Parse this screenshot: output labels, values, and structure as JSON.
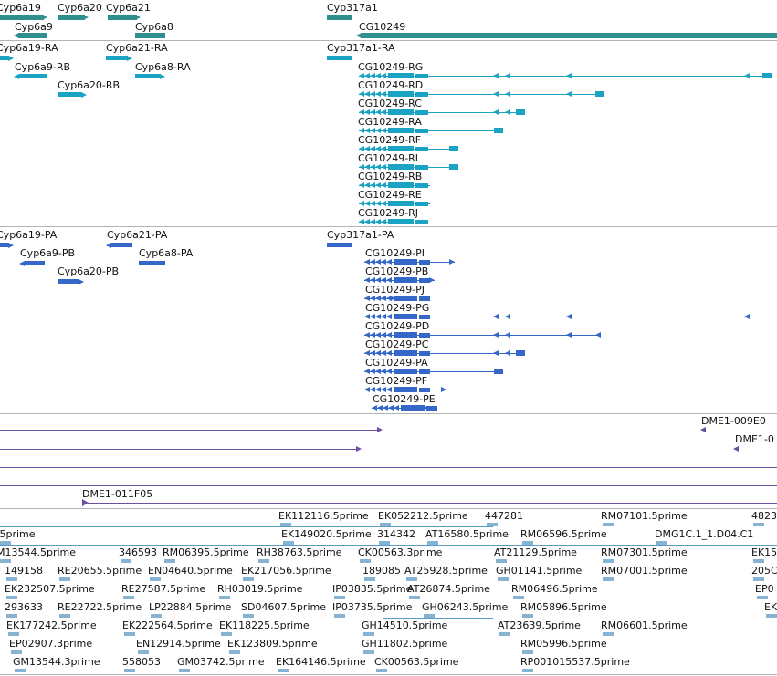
{
  "colors": {
    "gene": "#2f8f8f",
    "mrna": "#1ba3c4",
    "protein": "#3567c8",
    "clone_line": "#6b4fa0",
    "est": "#86b3d1",
    "separator": "#b4b4b4",
    "text": "#111111"
  },
  "tracks": {
    "gene": [
      "Cyp6a19",
      "Cyp6a20",
      "Cyp6a21",
      "Cyp6a9",
      "Cyp6a8",
      "Cyp317a1",
      "CG10249"
    ],
    "mrna": [
      "Cyp6a19-RA",
      "Cyp6a21-RA",
      "Cyp6a9-RB",
      "Cyp6a8-RA",
      "Cyp6a20-RB",
      "Cyp317a1-RA",
      "CG10249-RG",
      "CG10249-RD",
      "CG10249-RC",
      "CG10249-RA",
      "CG10249-RF",
      "CG10249-RI",
      "CG10249-RB",
      "CG10249-RE",
      "CG10249-RJ"
    ],
    "protein": [
      "Cyp6a19-PA",
      "Cyp6a21-PA",
      "Cyp6a9-PB",
      "Cyp6a8-PA",
      "Cyp6a20-PB",
      "Cyp317a1-PA",
      "CG10249-PI",
      "CG10249-PB",
      "CG10249-PJ",
      "CG10249-PG",
      "CG10249-PD",
      "CG10249-PC",
      "CG10249-PA",
      "CG10249-PF",
      "CG10249-PE"
    ],
    "clones": [
      "DME1-009E0",
      "DME1-0",
      "DME1-011F05"
    ],
    "est": [
      "EK112116.5prime",
      "EK052212.5prime",
      "447281",
      "RM07101.5prime",
      "4823",
      ".5prime",
      "EK149020.5prime",
      "314342",
      "AT16580.5prime",
      "RM06596.5prime",
      "DMG1C.1_1.D04.C1",
      "M13544.5prime",
      "346593",
      "RM06395.5prime",
      "RH38763.5prime",
      "CK00563.3prime",
      "AT21129.5prime",
      "RM07301.5prime",
      "EK15",
      "149158",
      "RE20655.5prime",
      "EN04640.5prime",
      "EK217056.5prime",
      "189085",
      "AT25928.5prime",
      "GH01141.5prime",
      "RM07001.5prime",
      "205C",
      "EK232507.5prime",
      "RE27587.5prime",
      "RH03019.5prime",
      "IP03835.5prime",
      "AT26874.5prime",
      "RM06496.5prime",
      "EP0",
      "293633",
      "RE22722.5prime",
      "LP22884.5prime",
      "SD04607.5prime",
      "IP03735.5prime",
      "GH06243.5prime",
      "RM05896.5prime",
      "EK",
      "EK177242.5prime",
      "EK222564.5prime",
      "EK118225.5prime",
      "GH14510.5prime",
      "AT23639.5prime",
      "RM06601.5prime",
      "EP02907.3prime",
      "EN12914.5prime",
      "EK123809.5prime",
      "GH11802.5prime",
      "RM05996.5prime",
      "GM13544.3prime",
      "558053",
      "GM03742.5prime",
      "EK164146.5prime",
      "CK00563.5prime",
      "RP001015537.5prime"
    ]
  }
}
